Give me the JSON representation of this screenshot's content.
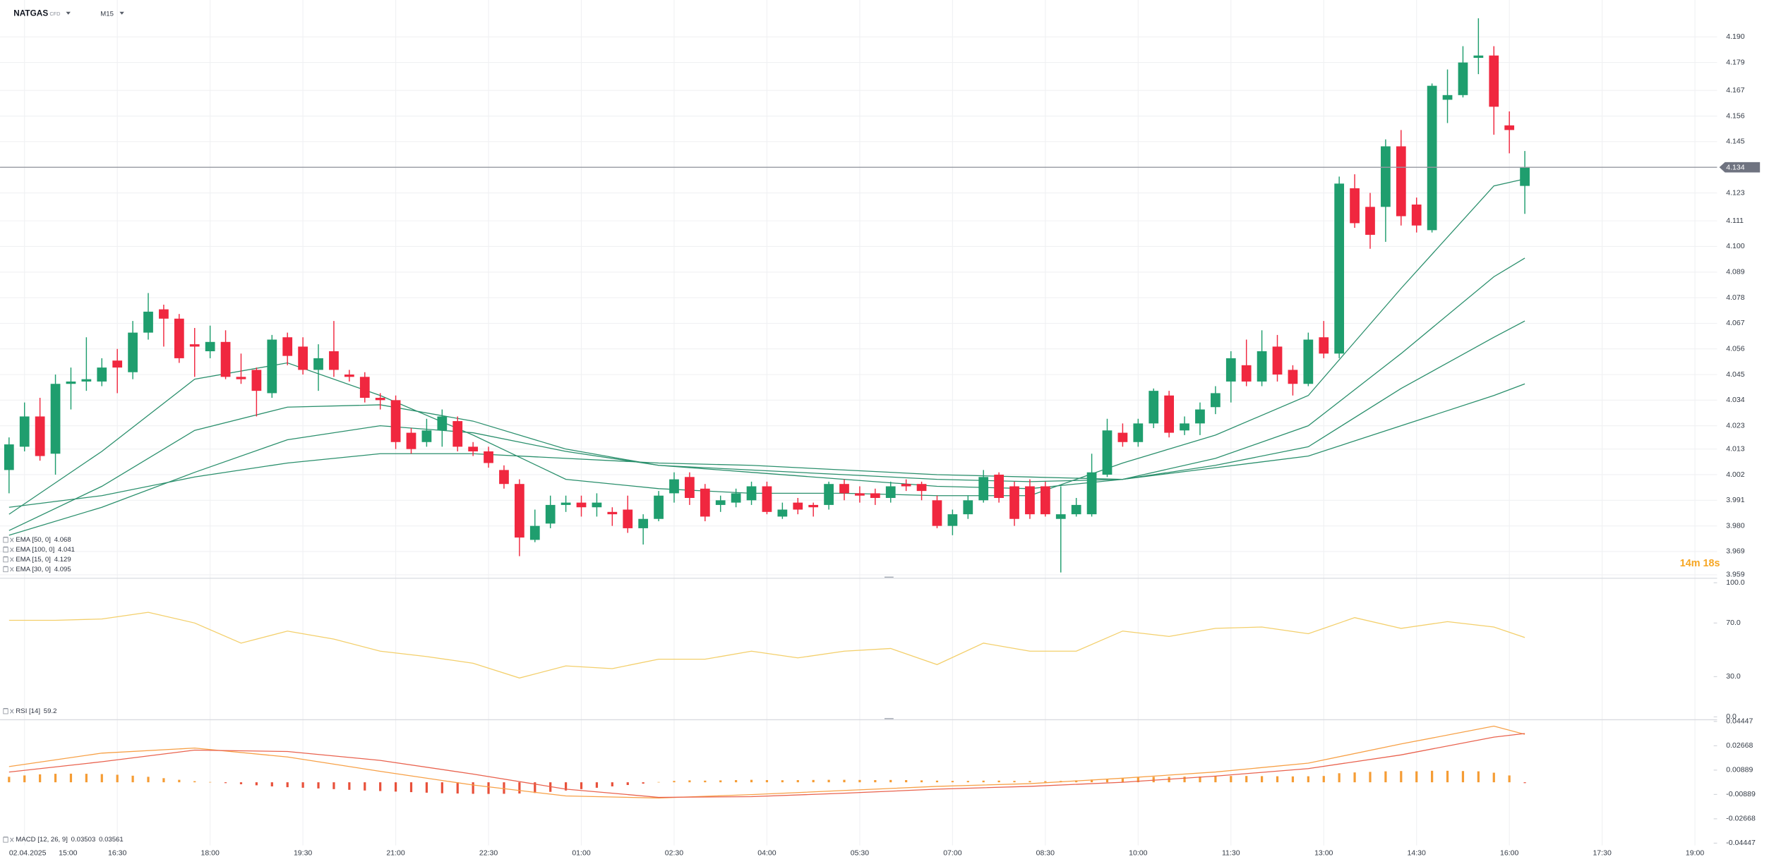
{
  "header": {
    "symbol": "NATGAS",
    "symbol_type": "CFD",
    "timeframe": "M15"
  },
  "countdown": "14m 18s",
  "chart_data": [
    {
      "type": "candlestick",
      "date": "02.04.2025",
      "xticks": [
        "15:00",
        "16:30",
        "18:00",
        "19:30",
        "21:00",
        "22:30",
        "01:00",
        "02:30",
        "04:00",
        "05:30",
        "07:00",
        "08:30",
        "10:00",
        "11:30",
        "13:00",
        "14:30",
        "16:00",
        "17:30",
        "19:00"
      ],
      "up_color": "#1f9e6e",
      "down_color": "#f0273f",
      "open": [
        4.004,
        4.014,
        4.027,
        4.011,
        4.041,
        4.042,
        4.042,
        4.051,
        4.046,
        4.063,
        4.073,
        4.069,
        4.058,
        4.055,
        4.059,
        4.044,
        4.047,
        4.037,
        4.061,
        4.057,
        4.047,
        4.055,
        4.045,
        4.044,
        4.035,
        4.034,
        4.02,
        4.016,
        4.021,
        4.025,
        4.014,
        4.012,
        4.004,
        3.998,
        3.974,
        3.981,
        3.989,
        3.99,
        3.988,
        3.986,
        3.987,
        3.979,
        3.983,
        3.994,
        4.001,
        3.996,
        3.989,
        3.99,
        3.991,
        3.997,
        3.984,
        3.99,
        3.989,
        3.989,
        3.998,
        3.994,
        3.994,
        3.992,
        3.998,
        3.998,
        3.991,
        3.98,
        3.985,
        3.991,
        4.002,
        3.997,
        3.997,
        3.997,
        3.983,
        3.985,
        3.985,
        4.002,
        4.02,
        4.016,
        4.024,
        4.036,
        4.021,
        4.024,
        4.031,
        4.042,
        4.049,
        4.042,
        4.057,
        4.047,
        4.041,
        4.061,
        4.054,
        4.125,
        4.117,
        4.117,
        4.143,
        4.118,
        4.107,
        4.163,
        4.165,
        4.181,
        4.182,
        4.152,
        4.126
      ],
      "high": [
        4.018,
        4.033,
        4.035,
        4.045,
        4.048,
        4.061,
        4.052,
        4.056,
        4.068,
        4.08,
        4.075,
        4.071,
        4.065,
        4.066,
        4.064,
        4.054,
        4.048,
        4.062,
        4.063,
        4.061,
        4.058,
        4.068,
        4.047,
        4.046,
        4.037,
        4.036,
        4.022,
        4.026,
        4.03,
        4.027,
        4.016,
        4.014,
        4.006,
        4.0,
        3.987,
        3.993,
        3.993,
        3.993,
        3.994,
        3.988,
        3.993,
        3.985,
        3.995,
        4.003,
        4.003,
        3.998,
        3.993,
        3.996,
        3.999,
        3.999,
        3.99,
        3.992,
        3.99,
        3.999,
        4.0,
        3.997,
        3.996,
        3.999,
        4.0,
        3.999,
        3.993,
        3.987,
        3.993,
        4.004,
        4.003,
        3.999,
        4.0,
        3.999,
        3.997,
        3.992,
        4.011,
        4.026,
        4.024,
        4.026,
        4.039,
        4.038,
        4.027,
        4.033,
        4.04,
        4.055,
        4.06,
        4.064,
        4.062,
        4.049,
        4.063,
        4.068,
        4.13,
        4.131,
        4.123,
        4.146,
        4.15,
        4.121,
        4.17,
        4.176,
        4.186,
        4.198,
        4.186,
        4.158,
        4.141
      ],
      "low": [
        3.994,
        4.012,
        4.008,
        4.002,
        4.03,
        4.038,
        4.04,
        4.037,
        4.043,
        4.06,
        4.057,
        4.05,
        4.044,
        4.052,
        4.043,
        4.041,
        4.027,
        4.035,
        4.049,
        4.045,
        4.038,
        4.044,
        4.042,
        4.033,
        4.03,
        4.013,
        4.011,
        4.014,
        4.014,
        4.012,
        4.01,
        4.005,
        3.996,
        3.967,
        3.973,
        3.979,
        3.986,
        3.984,
        3.984,
        3.98,
        3.977,
        3.972,
        3.982,
        3.99,
        3.989,
        3.982,
        3.986,
        3.988,
        3.989,
        3.985,
        3.983,
        3.985,
        3.984,
        3.987,
        3.991,
        3.99,
        3.989,
        3.99,
        3.995,
        3.991,
        3.979,
        3.976,
        3.983,
        3.99,
        3.99,
        3.98,
        3.983,
        3.984,
        3.96,
        3.984,
        3.984,
        4.001,
        4.014,
        4.014,
        4.022,
        4.018,
        4.019,
        4.019,
        4.028,
        4.033,
        4.04,
        4.04,
        4.042,
        4.036,
        4.04,
        4.052,
        4.052,
        4.108,
        4.099,
        4.102,
        4.109,
        4.106,
        4.106,
        4.153,
        4.164,
        4.174,
        4.148,
        4.14,
        4.114
      ],
      "close": [
        4.015,
        4.027,
        4.01,
        4.041,
        4.042,
        4.043,
        4.048,
        4.048,
        4.063,
        4.072,
        4.069,
        4.052,
        4.057,
        4.059,
        4.044,
        4.043,
        4.038,
        4.06,
        4.053,
        4.047,
        4.052,
        4.047,
        4.044,
        4.035,
        4.034,
        4.016,
        4.013,
        4.021,
        4.027,
        4.014,
        4.012,
        4.007,
        3.998,
        3.975,
        3.98,
        3.989,
        3.99,
        3.988,
        3.99,
        3.985,
        3.979,
        3.983,
        3.993,
        4.0,
        3.992,
        3.984,
        3.991,
        3.994,
        3.997,
        3.986,
        3.987,
        3.987,
        3.988,
        3.998,
        3.994,
        3.993,
        3.992,
        3.997,
        3.997,
        3.995,
        3.98,
        3.985,
        3.991,
        4.001,
        3.992,
        3.983,
        3.985,
        3.985,
        3.985,
        3.989,
        4.003,
        4.021,
        4.016,
        4.024,
        4.038,
        4.02,
        4.024,
        4.03,
        4.037,
        4.052,
        4.042,
        4.055,
        4.045,
        4.041,
        4.06,
        4.054,
        4.127,
        4.11,
        4.105,
        4.143,
        4.113,
        4.109,
        4.169,
        4.165,
        4.179,
        4.182,
        4.16,
        4.15,
        4.134
      ],
      "overlays": [
        {
          "name": "EMA [50, 0]",
          "color": "#2a8f6c",
          "x": [
            0,
            6,
            12,
            18,
            24,
            30,
            36,
            42,
            48,
            54,
            60,
            66,
            72,
            78,
            84,
            90,
            96,
            98
          ],
          "values": [
            3.976,
            3.988,
            4.003,
            4.017,
            4.023,
            4.02,
            4.012,
            4.006,
            4.004,
            4.002,
            4.0,
            3.999,
            4.0,
            4.006,
            4.014,
            4.039,
            4.061,
            4.068
          ]
        },
        {
          "name": "EMA [100, 0]",
          "color": "#2a8f6c",
          "x": [
            0,
            6,
            12,
            18,
            24,
            30,
            36,
            42,
            48,
            54,
            60,
            66,
            72,
            78,
            84,
            90,
            96,
            98
          ],
          "values": [
            3.988,
            3.993,
            4.001,
            4.007,
            4.011,
            4.011,
            4.009,
            4.007,
            4.006,
            4.004,
            4.002,
            4.001,
            4.0,
            4.005,
            4.01,
            4.023,
            4.036,
            4.041
          ]
        },
        {
          "name": "EMA [15, 0]",
          "color": "#2a8f6c",
          "x": [
            0,
            6,
            12,
            18,
            24,
            30,
            36,
            42,
            48,
            54,
            60,
            66,
            72,
            78,
            84,
            90,
            96,
            98
          ],
          "values": [
            3.985,
            4.012,
            4.043,
            4.05,
            4.036,
            4.019,
            4.0,
            3.996,
            3.994,
            3.994,
            3.993,
            3.993,
            4.007,
            4.019,
            4.036,
            4.082,
            4.126,
            4.129
          ]
        },
        {
          "name": "EMA [30, 0]",
          "color": "#2a8f6c",
          "x": [
            0,
            6,
            12,
            18,
            24,
            30,
            36,
            42,
            48,
            54,
            60,
            66,
            72,
            78,
            84,
            90,
            96,
            98
          ],
          "values": [
            3.978,
            3.997,
            4.021,
            4.031,
            4.032,
            4.025,
            4.013,
            4.006,
            4.003,
            4.0,
            3.997,
            3.996,
            4.0,
            4.009,
            4.023,
            4.054,
            4.087,
            4.095
          ]
        }
      ],
      "ylim": [
        3.958,
        4.201
      ],
      "yticks": [
        {
          "value": 4.19,
          "label": "4.190"
        },
        4.179,
        4.167,
        4.156,
        4.145,
        4.123,
        4.111,
        {
          "value": 4.1,
          "label": "4.100"
        },
        4.089,
        4.078,
        4.067,
        4.056,
        4.045,
        4.034,
        4.023,
        4.013,
        4.002,
        3.991,
        {
          "value": 3.98,
          "label": "3.980"
        },
        3.969,
        3.959
      ],
      "grid": true
    },
    {
      "type": "line",
      "series": [
        {
          "name": "RSI [14]",
          "color": "#f3cf6b",
          "x": [
            0,
            3,
            6,
            9,
            12,
            15,
            18,
            21,
            24,
            27,
            30,
            33,
            36,
            39,
            42,
            45,
            48,
            51,
            54,
            57,
            60,
            63,
            66,
            69,
            72,
            75,
            78,
            81,
            84,
            87,
            90,
            93,
            96,
            98
          ],
          "values": [
            72,
            72,
            73,
            78,
            70,
            55,
            64,
            58,
            49,
            45,
            40,
            29,
            38,
            36,
            43,
            43,
            49,
            44,
            49,
            51,
            39,
            55,
            49,
            49,
            64,
            60,
            66,
            67,
            62,
            74,
            66,
            71,
            67,
            59.2
          ]
        }
      ],
      "ylim": [
        0,
        100
      ],
      "yticks": [
        {
          "value": 100,
          "label": "100.0"
        },
        {
          "value": 70,
          "label": "70.0"
        },
        {
          "value": 30,
          "label": "30.0"
        },
        {
          "value": 0,
          "label": "0.0"
        }
      ]
    },
    {
      "type": "macd",
      "series": [
        {
          "name": "MACD [12, 26, 9]",
          "color": "#f7a046",
          "x": [
            0,
            6,
            12,
            18,
            24,
            30,
            36,
            42,
            48,
            54,
            60,
            66,
            72,
            78,
            84,
            90,
            96,
            98
          ],
          "values": [
            0.0115,
            0.0213,
            0.025,
            0.0185,
            0.008,
            -0.002,
            -0.01,
            -0.0115,
            -0.009,
            -0.006,
            -0.003,
            -0.001,
            0.003,
            0.0075,
            0.014,
            0.028,
            0.041,
            0.03503
          ]
        },
        {
          "color": "#e9624e",
          "x": [
            0,
            6,
            12,
            18,
            24,
            30,
            36,
            42,
            48,
            54,
            60,
            66,
            72,
            78,
            84,
            90,
            96,
            98
          ],
          "values": [
            0.0075,
            0.015,
            0.0235,
            0.0225,
            0.016,
            0.006,
            -0.005,
            -0.011,
            -0.0105,
            -0.008,
            -0.005,
            -0.003,
            0,
            0.0045,
            0.01,
            0.02,
            0.033,
            0.03561
          ]
        }
      ],
      "histogram": {
        "up_color": "#f59c34",
        "down_color": "#e8503a",
        "values": [
          0.004,
          0.005,
          0.0058,
          0.0062,
          0.0063,
          0.0062,
          0.006,
          0.0055,
          0.0048,
          0.004,
          0.003,
          0.0018,
          0.0008,
          0.0002,
          -0.0006,
          -0.0014,
          -0.0022,
          -0.003,
          -0.0036,
          -0.004,
          -0.0045,
          -0.005,
          -0.0055,
          -0.006,
          -0.0064,
          -0.0068,
          -0.0072,
          -0.0076,
          -0.008,
          -0.0082,
          -0.0084,
          -0.0085,
          -0.0084,
          -0.0082,
          -0.0078,
          -0.007,
          -0.006,
          -0.005,
          -0.004,
          -0.003,
          -0.002,
          -0.001,
          0.0002,
          0.001,
          0.0014,
          0.0012,
          0.0014,
          0.0016,
          0.0018,
          0.0016,
          0.0015,
          0.0016,
          0.0017,
          0.0018,
          0.0018,
          0.0017,
          0.0016,
          0.0017,
          0.0016,
          0.0014,
          0.0012,
          0.001,
          0.001,
          0.0012,
          0.0012,
          0.001,
          0.0009,
          0.0008,
          0.001,
          0.0014,
          0.002,
          0.0026,
          0.0032,
          0.0036,
          0.004,
          0.004,
          0.0041,
          0.0042,
          0.0044,
          0.0046,
          0.0046,
          0.0045,
          0.0044,
          0.0043,
          0.0044,
          0.0046,
          0.0066,
          0.0072,
          0.0076,
          0.008,
          0.0082,
          0.008,
          0.0084,
          0.0084,
          0.0082,
          0.008,
          0.007,
          0.005,
          -0.0006
        ]
      },
      "ylim": [
        -0.04447,
        0.04447
      ],
      "yticks": [
        0.04447,
        0.02668,
        0.00889,
        -0.00889,
        -0.02668,
        -0.04447
      ]
    }
  ]
}
